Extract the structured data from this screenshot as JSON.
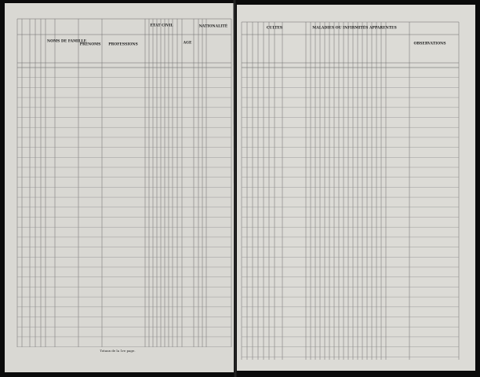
{
  "left_page": {
    "headers": [
      "NOMS DE FAMILLE",
      "PRÉNOMS",
      "PROFESSIONS",
      "ÉTAT CIVIL",
      "AGE",
      "NATIONALITÉ"
    ],
    "footer": "Totaux de la 1re page."
  },
  "right_page": {
    "headers": [
      "CULTES",
      "MALADIES OU INFIRMITÉS APPARENTES",
      "OBSERVATIONS"
    ]
  }
}
